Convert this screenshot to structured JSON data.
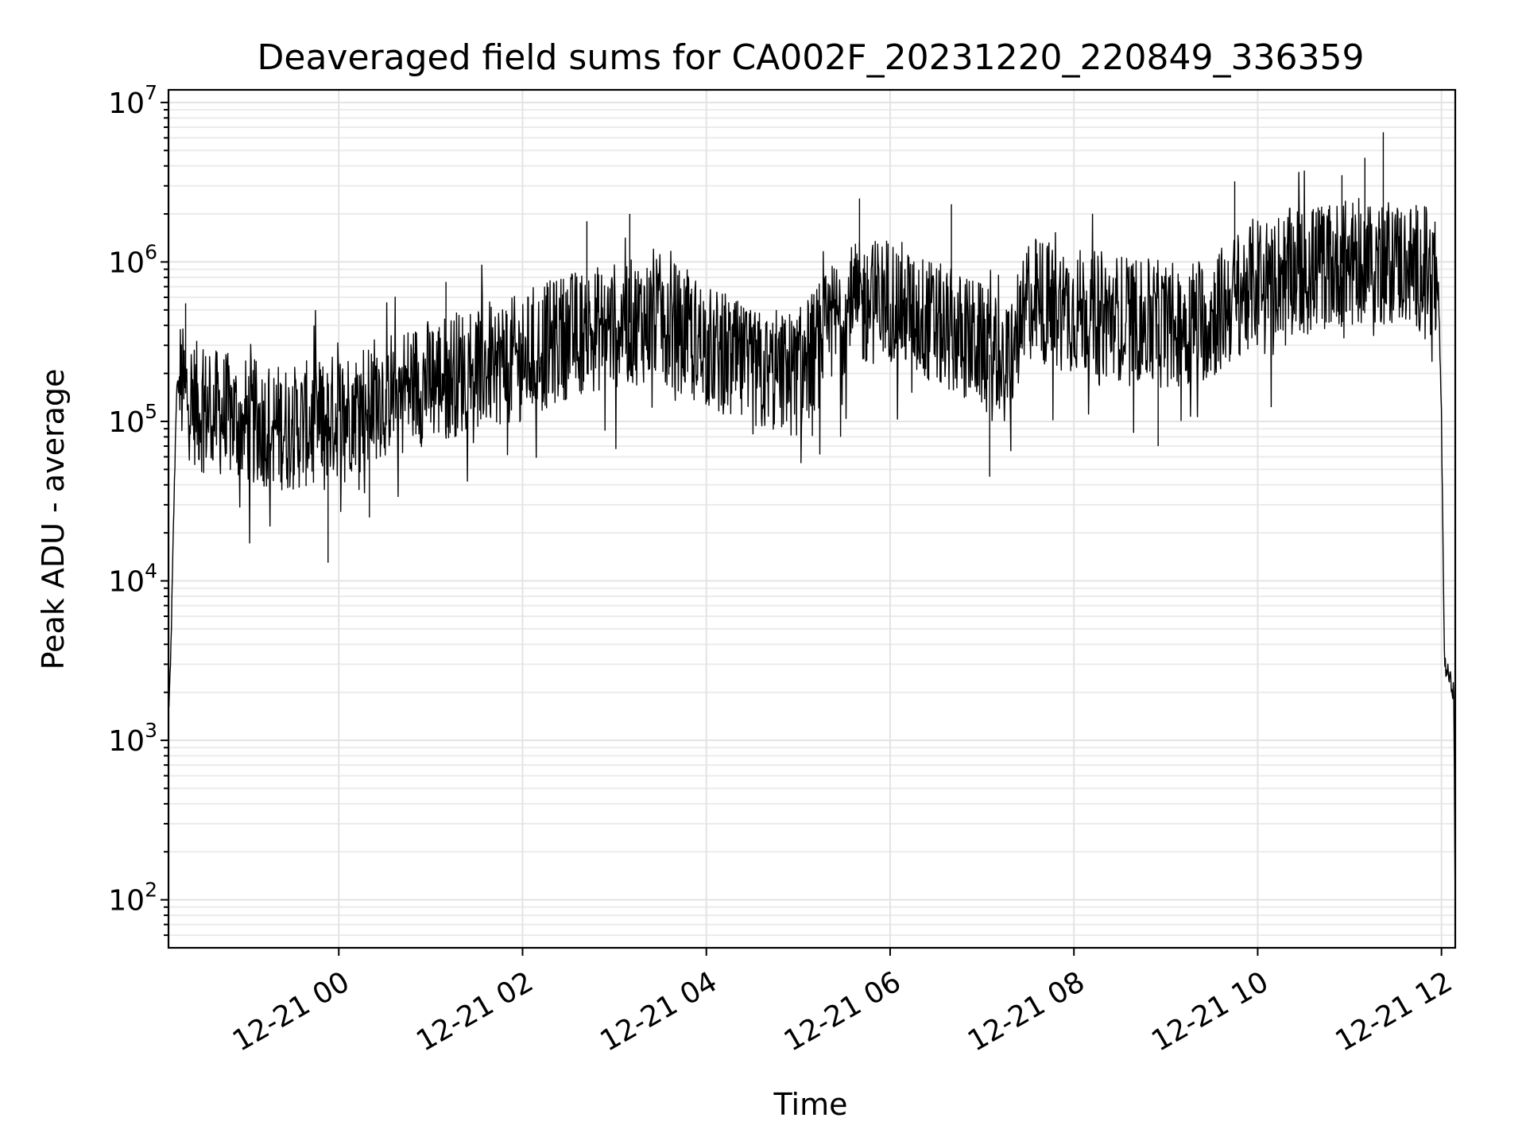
{
  "chart_data": {
    "type": "line",
    "title": "Deaveraged field sums for CA002F_20231220_220849_336359",
    "xlabel": "Time",
    "ylabel": "Peak ADU - average",
    "y_scale": "log",
    "ylim": [
      50,
      12000000
    ],
    "xlim": [
      "2023-12-20T22:08:49",
      "2023-12-21T12:09:00"
    ],
    "x_ticks": [
      {
        "value": "2023-12-21T00:00:00",
        "label": "12-21 00"
      },
      {
        "value": "2023-12-21T02:00:00",
        "label": "12-21 02"
      },
      {
        "value": "2023-12-21T04:00:00",
        "label": "12-21 04"
      },
      {
        "value": "2023-12-21T06:00:00",
        "label": "12-21 06"
      },
      {
        "value": "2023-12-21T08:00:00",
        "label": "12-21 08"
      },
      {
        "value": "2023-12-21T10:00:00",
        "label": "12-21 10"
      },
      {
        "value": "2023-12-21T12:00:00",
        "label": "12-21 12"
      }
    ],
    "y_ticks": [
      {
        "value": 100,
        "base": "10",
        "exp": "2"
      },
      {
        "value": 1000,
        "base": "10",
        "exp": "3"
      },
      {
        "value": 10000,
        "base": "10",
        "exp": "4"
      },
      {
        "value": 100000,
        "base": "10",
        "exp": "5"
      },
      {
        "value": 1000000,
        "base": "10",
        "exp": "6"
      },
      {
        "value": 10000000,
        "base": "10",
        "exp": "7"
      }
    ],
    "grid": true,
    "legend": "none",
    "series": [
      {
        "color": "#000000",
        "x": [
          "2023-12-20T22:08:49",
          "2023-12-20T22:10:00",
          "2023-12-20T22:12:00",
          "2023-12-20T22:14:00",
          "2023-12-20T22:16:00",
          "2023-12-20T22:18:00",
          "2023-12-20T22:20:00",
          "2023-12-20T22:30:00",
          "2023-12-20T22:45:00",
          "2023-12-20T23:00:00",
          "2023-12-20T23:15:00",
          "2023-12-20T23:30:00",
          "2023-12-20T23:45:00",
          "2023-12-21T00:00:00",
          "2023-12-21T00:30:00",
          "2023-12-21T01:00:00",
          "2023-12-21T01:30:00",
          "2023-12-21T02:00:00",
          "2023-12-21T02:30:00",
          "2023-12-21T03:00:00",
          "2023-12-21T03:30:00",
          "2023-12-21T04:00:00",
          "2023-12-21T04:30:00",
          "2023-12-21T05:00:00",
          "2023-12-21T05:30:00",
          "2023-12-21T06:00:00",
          "2023-12-21T06:30:00",
          "2023-12-21T07:00:00",
          "2023-12-21T07:15:00",
          "2023-12-21T07:30:00",
          "2023-12-21T08:00:00",
          "2023-12-21T08:30:00",
          "2023-12-21T09:00:00",
          "2023-12-21T09:30:00",
          "2023-12-21T10:00:00",
          "2023-12-21T10:30:00",
          "2023-12-21T11:00:00",
          "2023-12-21T11:30:00",
          "2023-12-21T11:50:00",
          "2023-12-21T11:58:00",
          "2023-12-21T12:00:00",
          "2023-12-21T12:02:00",
          "2023-12-21T12:05:00",
          "2023-12-21T12:08:00",
          "2023-12-21T12:09:00"
        ],
        "values": [
          1500,
          2500,
          20000,
          150000,
          180000,
          160000,
          150000,
          120000,
          110000,
          100000,
          95000,
          90000,
          100000,
          110000,
          150000,
          180000,
          220000,
          250000,
          350000,
          400000,
          450000,
          300000,
          200000,
          200000,
          500000,
          600000,
          400000,
          300000,
          200000,
          600000,
          500000,
          450000,
          400000,
          450000,
          800000,
          900000,
          1000000,
          1000000,
          900000,
          700000,
          100000,
          3000,
          2500,
          2000,
          80
        ],
        "spikes": [
          {
            "x": "2023-12-20T22:20:00",
            "value": 550000
          },
          {
            "x": "2023-12-20T23:53:00",
            "value": 13000
          },
          {
            "x": "2023-12-21T00:20:00",
            "value": 25000
          },
          {
            "x": "2023-12-21T01:10:00",
            "value": 750000
          },
          {
            "x": "2023-12-21T02:42:00",
            "value": 1800000
          },
          {
            "x": "2023-12-21T03:10:00",
            "value": 2000000
          },
          {
            "x": "2023-12-21T05:40:00",
            "value": 2500000
          },
          {
            "x": "2023-12-21T06:40:00",
            "value": 2300000
          },
          {
            "x": "2023-12-21T07:05:00",
            "value": 45000
          },
          {
            "x": "2023-12-21T08:55:00",
            "value": 70000
          },
          {
            "x": "2023-12-21T09:45:00",
            "value": 3200000
          },
          {
            "x": "2023-12-21T10:55:00",
            "value": 3500000
          },
          {
            "x": "2023-12-21T11:10:00",
            "value": 4500000
          },
          {
            "x": "2023-12-21T11:22:00",
            "value": 6500000
          },
          {
            "x": "2023-12-21T11:40:00",
            "value": 2000000
          }
        ]
      }
    ]
  }
}
